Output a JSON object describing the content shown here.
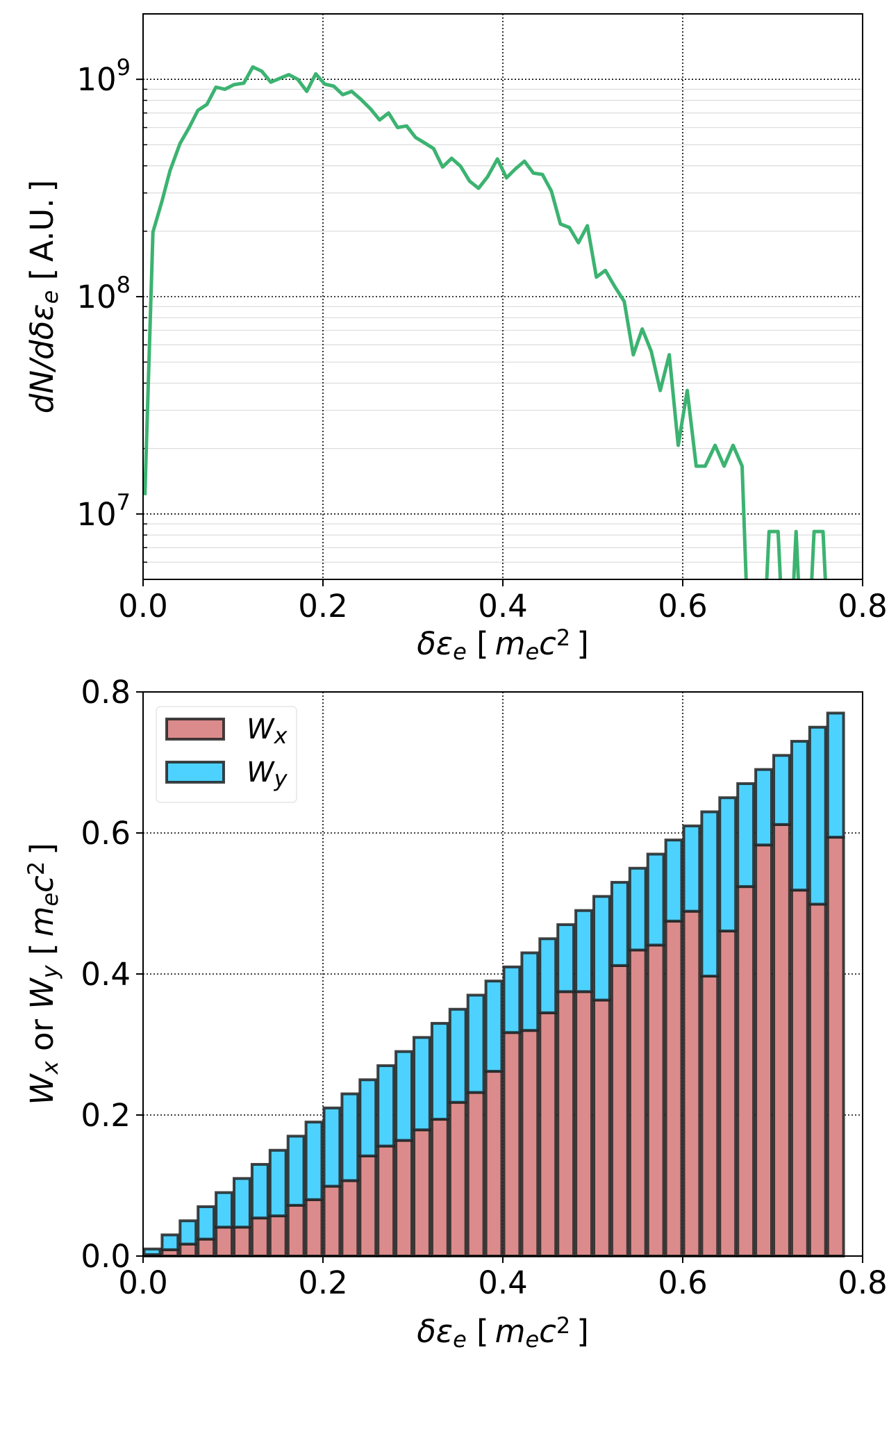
{
  "chart_data": [
    {
      "type": "line",
      "xlabel": "δε_e [m_ec^2]",
      "ylabel": "dN/dδε_e [A.U.]",
      "xlim": [
        0.0,
        0.8
      ],
      "ylim": [
        5000000.0,
        2000000000.0
      ],
      "yscale": "log",
      "grid": true,
      "xticks": [
        "0.0",
        "0.2",
        "0.4",
        "0.6",
        "0.8"
      ],
      "yticks": [
        {
          "base": "10",
          "exp": "7",
          "value": 10000000.0
        },
        {
          "base": "10",
          "exp": "8",
          "value": 100000000.0
        },
        {
          "base": "10",
          "exp": "9",
          "value": 1000000000.0
        }
      ],
      "color": "#3cb371",
      "x": [
        0.002,
        0.011,
        0.021,
        0.03,
        0.041,
        0.051,
        0.061,
        0.071,
        0.081,
        0.091,
        0.101,
        0.112,
        0.122,
        0.132,
        0.142,
        0.152,
        0.162,
        0.172,
        0.182,
        0.192,
        0.202,
        0.212,
        0.222,
        0.232,
        0.242,
        0.253,
        0.263,
        0.273,
        0.283,
        0.293,
        0.303,
        0.313,
        0.323,
        0.333,
        0.343,
        0.353,
        0.363,
        0.373,
        0.383,
        0.394,
        0.404,
        0.414,
        0.424,
        0.434,
        0.444,
        0.454,
        0.464,
        0.474,
        0.484,
        0.494,
        0.504,
        0.514,
        0.524,
        0.535,
        0.545,
        0.555,
        0.565,
        0.575,
        0.585,
        0.595,
        0.605,
        0.615,
        0.625,
        0.636,
        0.646,
        0.656,
        0.666,
        0.676,
        0.686,
        0.696,
        0.706,
        0.716,
        0.726,
        0.736,
        0.746,
        0.756,
        0.766
      ],
      "y": [
        12200000.0,
        198000000.0,
        275000000.0,
        380000000.0,
        506000000.0,
        597000000.0,
        720000000.0,
        766000000.0,
        920000000.0,
        900000000.0,
        945000000.0,
        960000000.0,
        1140000000.0,
        1090000000.0,
        970000000.0,
        1010000000.0,
        1050000000.0,
        1000000000.0,
        880000000.0,
        1060000000.0,
        950000000.0,
        930000000.0,
        850000000.0,
        880000000.0,
        810000000.0,
        730000000.0,
        650000000.0,
        700000000.0,
        600000000.0,
        610000000.0,
        540000000.0,
        510000000.0,
        480000000.0,
        395000000.0,
        433000000.0,
        398000000.0,
        340000000.0,
        315000000.0,
        356000000.0,
        430000000.0,
        352000000.0,
        387000000.0,
        420000000.0,
        370000000.0,
        365000000.0,
        306000000.0,
        216000000.0,
        208000000.0,
        177000000.0,
        212000000.0,
        123000000.0,
        132000000.0,
        112000000.0,
        95000000.0,
        54000000.0,
        71000000.0,
        56000000.0,
        37000000.0,
        54000000.0,
        20700000.0,
        37000000.0,
        16600000.0,
        16600000.0,
        20700000.0,
        16600000.0,
        20700000.0,
        16600000.0,
        0,
        0,
        8300000.0,
        8300000.0,
        0,
        8300000.0,
        0,
        8300000.0,
        8300000.0,
        0
      ]
    },
    {
      "type": "bar",
      "stacked": true,
      "xlabel": "δε_e [m_ec^2]",
      "ylabel": "W_x or W_y [m_ec^2]",
      "xlim": [
        0.0,
        0.8
      ],
      "ylim": [
        0.0,
        0.8
      ],
      "grid": true,
      "legend_position": "top-left",
      "xticks": [
        "0.0",
        "0.2",
        "0.4",
        "0.6",
        "0.8"
      ],
      "yticks": [
        "0.0",
        "0.2",
        "0.4",
        "0.6",
        "0.8"
      ],
      "bin_width": 0.02,
      "bin_left": [
        0.0,
        0.02,
        0.04,
        0.06,
        0.08,
        0.1,
        0.12,
        0.14,
        0.16,
        0.18,
        0.2,
        0.22,
        0.24,
        0.26,
        0.28,
        0.3,
        0.32,
        0.34,
        0.36,
        0.38,
        0.4,
        0.42,
        0.44,
        0.46,
        0.48,
        0.5,
        0.52,
        0.54,
        0.56,
        0.58,
        0.6,
        0.62,
        0.64,
        0.66,
        0.68,
        0.7,
        0.72,
        0.74,
        0.76
      ],
      "series": [
        {
          "name": "W_x",
          "color": "#db8b8b",
          "values": [
            0.002,
            0.009,
            0.017,
            0.024,
            0.041,
            0.041,
            0.054,
            0.057,
            0.072,
            0.08,
            0.099,
            0.107,
            0.142,
            0.156,
            0.164,
            0.179,
            0.194,
            0.218,
            0.232,
            0.262,
            0.317,
            0.32,
            0.345,
            0.375,
            0.375,
            0.363,
            0.412,
            0.434,
            0.441,
            0.475,
            0.489,
            0.397,
            0.461,
            0.524,
            0.583,
            0.612,
            0.519,
            0.499,
            0.594
          ]
        },
        {
          "name": "W_y",
          "color": "#4dd2ff",
          "values": [
            0.008,
            0.021,
            0.033,
            0.046,
            0.049,
            0.069,
            0.076,
            0.093,
            0.098,
            0.11,
            0.111,
            0.123,
            0.108,
            0.114,
            0.126,
            0.131,
            0.136,
            0.132,
            0.138,
            0.128,
            0.093,
            0.11,
            0.105,
            0.095,
            0.115,
            0.147,
            0.118,
            0.116,
            0.129,
            0.115,
            0.121,
            0.233,
            0.189,
            0.146,
            0.107,
            0.098,
            0.211,
            0.251,
            0.176
          ]
        }
      ]
    }
  ]
}
